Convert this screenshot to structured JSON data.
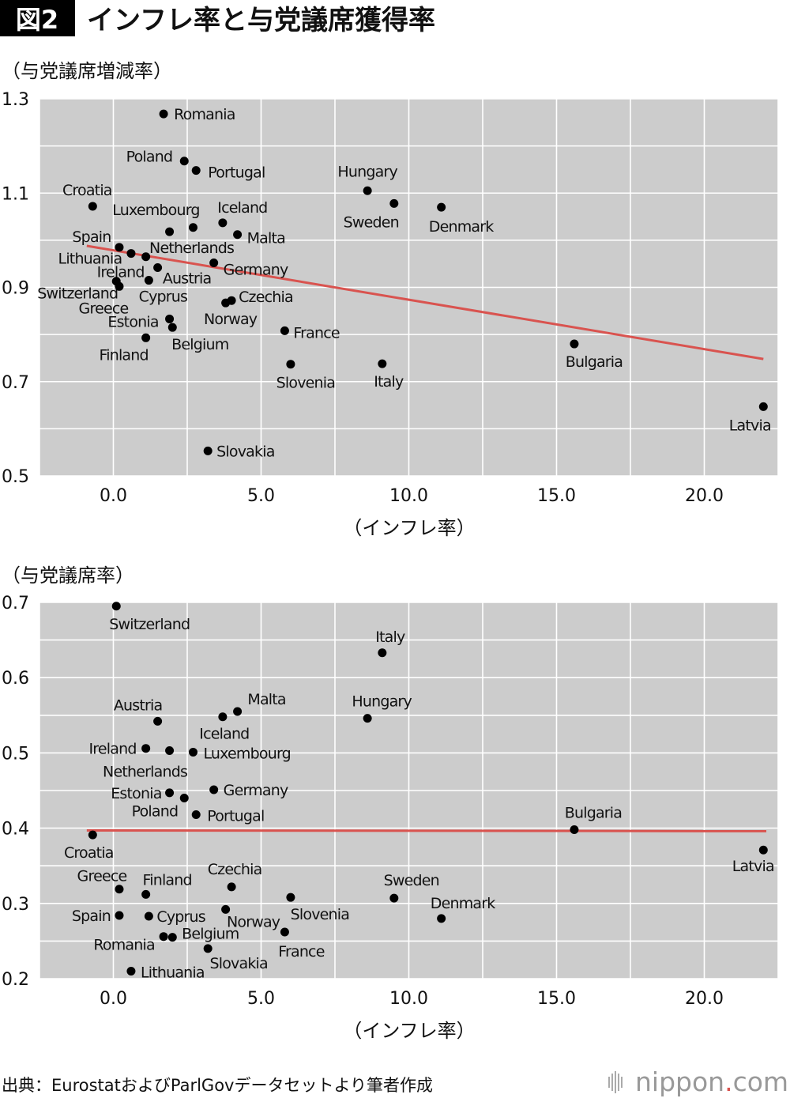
{
  "header": {
    "badge": "図2",
    "title": "インフレ率と与党議席獲得率"
  },
  "footer": {
    "source": "出典：EurostatおよびParlGovデータセットより筆者作成",
    "logo_main": "nippon",
    "logo_dot": ".",
    "logo_tld": "com"
  },
  "colors": {
    "panel": "#cccccc",
    "grid": "#ffffff",
    "point": "#000000",
    "trend": "#d9534f",
    "badge_bg": "#000000"
  },
  "chart_data": [
    {
      "type": "scatter",
      "ylabel": "（与党議席増減率）",
      "xlabel": "（インフレ率）",
      "xlim": [
        -2.5,
        22.5
      ],
      "ylim": [
        0.5,
        1.3
      ],
      "xticks": [
        "0.0",
        "5.0",
        "10.0",
        "15.0",
        "20.0"
      ],
      "xtick_values": [
        0,
        5,
        10,
        15,
        20
      ],
      "yticks": [
        "1.3",
        "1.1",
        "0.9",
        "0.7",
        "0.5"
      ],
      "ytick_values": [
        1.3,
        1.1,
        0.9,
        0.7,
        0.5
      ],
      "grid": true,
      "trend_line": {
        "x": [
          -0.9,
          22.0
        ],
        "y": [
          0.988,
          0.748
        ]
      },
      "points": [
        {
          "label": "Romania",
          "x": 1.7,
          "y": 1.268
        },
        {
          "label": "Poland",
          "x": 2.4,
          "y": 1.168
        },
        {
          "label": "Portugal",
          "x": 2.8,
          "y": 1.148
        },
        {
          "label": "Hungary",
          "x": 8.6,
          "y": 1.105
        },
        {
          "label": "Sweden",
          "x": 9.5,
          "y": 1.078
        },
        {
          "label": "Denmark",
          "x": 11.1,
          "y": 1.07
        },
        {
          "label": "Croatia",
          "x": -0.7,
          "y": 1.072
        },
        {
          "label": "Netherlands",
          "x": 1.9,
          "y": 1.018
        },
        {
          "label": "Luxembourg",
          "x": 2.7,
          "y": 1.027
        },
        {
          "label": "Iceland",
          "x": 3.7,
          "y": 1.037
        },
        {
          "label": "Malta",
          "x": 4.2,
          "y": 1.012
        },
        {
          "label": "Spain",
          "x": 0.2,
          "y": 0.985
        },
        {
          "label": "Lithuania",
          "x": 0.6,
          "y": 0.972
        },
        {
          "label": "Ireland",
          "x": 1.1,
          "y": 0.965
        },
        {
          "label": "Austria",
          "x": 1.5,
          "y": 0.942
        },
        {
          "label": "Germany",
          "x": 3.4,
          "y": 0.952
        },
        {
          "label": "Switzerland",
          "x": 0.1,
          "y": 0.913
        },
        {
          "label": "Greece",
          "x": 0.2,
          "y": 0.902
        },
        {
          "label": "Cyprus",
          "x": 1.2,
          "y": 0.915
        },
        {
          "label": "Czechia",
          "x": 4.0,
          "y": 0.872
        },
        {
          "label": "Norway",
          "x": 3.8,
          "y": 0.867
        },
        {
          "label": "Estonia",
          "x": 1.9,
          "y": 0.833
        },
        {
          "label": "Belgium",
          "x": 2.0,
          "y": 0.815
        },
        {
          "label": "Finland",
          "x": 1.1,
          "y": 0.793
        },
        {
          "label": "France",
          "x": 5.8,
          "y": 0.808
        },
        {
          "label": "Slovenia",
          "x": 6.0,
          "y": 0.737
        },
        {
          "label": "Italy",
          "x": 9.1,
          "y": 0.738
        },
        {
          "label": "Bulgaria",
          "x": 15.6,
          "y": 0.78
        },
        {
          "label": "Latvia",
          "x": 22.0,
          "y": 0.647
        },
        {
          "label": "Slovakia",
          "x": 3.2,
          "y": 0.553
        }
      ]
    },
    {
      "type": "scatter",
      "ylabel": "（与党議席率）",
      "xlabel": "（インフレ率）",
      "xlim": [
        -2.5,
        22.5
      ],
      "ylim": [
        0.2,
        0.7
      ],
      "xticks": [
        "0.0",
        "5.0",
        "10.0",
        "15.0",
        "20.0"
      ],
      "xtick_values": [
        0,
        5,
        10,
        15,
        20
      ],
      "yticks": [
        "0.7",
        "0.6",
        "0.5",
        "0.4",
        "0.3",
        "0.2"
      ],
      "ytick_values": [
        0.7,
        0.6,
        0.5,
        0.4,
        0.3,
        0.2
      ],
      "grid": true,
      "trend_line": {
        "x": [
          -0.9,
          22.1
        ],
        "y": [
          0.397,
          0.396
        ]
      },
      "points": [
        {
          "label": "Switzerland",
          "x": 0.1,
          "y": 0.695
        },
        {
          "label": "Italy",
          "x": 9.1,
          "y": 0.633
        },
        {
          "label": "Malta",
          "x": 4.2,
          "y": 0.555
        },
        {
          "label": "Iceland",
          "x": 3.7,
          "y": 0.548
        },
        {
          "label": "Hungary",
          "x": 8.6,
          "y": 0.546
        },
        {
          "label": "Austria",
          "x": 1.5,
          "y": 0.542
        },
        {
          "label": "Ireland",
          "x": 1.1,
          "y": 0.506
        },
        {
          "label": "Netherlands",
          "x": 1.9,
          "y": 0.503
        },
        {
          "label": "Luxembourg",
          "x": 2.7,
          "y": 0.501
        },
        {
          "label": "Estonia",
          "x": 1.9,
          "y": 0.447
        },
        {
          "label": "Germany",
          "x": 3.4,
          "y": 0.451
        },
        {
          "label": "Poland",
          "x": 2.4,
          "y": 0.44
        },
        {
          "label": "Portugal",
          "x": 2.8,
          "y": 0.418
        },
        {
          "label": "Croatia",
          "x": -0.7,
          "y": 0.391
        },
        {
          "label": "Bulgaria",
          "x": 15.6,
          "y": 0.398
        },
        {
          "label": "Latvia",
          "x": 22.0,
          "y": 0.371
        },
        {
          "label": "Greece",
          "x": 0.2,
          "y": 0.319
        },
        {
          "label": "Finland",
          "x": 1.1,
          "y": 0.312
        },
        {
          "label": "Czechia",
          "x": 4.0,
          "y": 0.322
        },
        {
          "label": "Slovenia",
          "x": 6.0,
          "y": 0.308
        },
        {
          "label": "Sweden",
          "x": 9.5,
          "y": 0.307
        },
        {
          "label": "Spain",
          "x": 0.2,
          "y": 0.284
        },
        {
          "label": "Cyprus",
          "x": 1.2,
          "y": 0.283
        },
        {
          "label": "Norway",
          "x": 3.8,
          "y": 0.292
        },
        {
          "label": "Denmark",
          "x": 11.1,
          "y": 0.28
        },
        {
          "label": "France",
          "x": 5.8,
          "y": 0.262
        },
        {
          "label": "Romania",
          "x": 1.7,
          "y": 0.256
        },
        {
          "label": "Belgium",
          "x": 2.0,
          "y": 0.255
        },
        {
          "label": "Slovakia",
          "x": 3.2,
          "y": 0.24
        },
        {
          "label": "Lithuania",
          "x": 0.6,
          "y": 0.21
        }
      ]
    }
  ]
}
